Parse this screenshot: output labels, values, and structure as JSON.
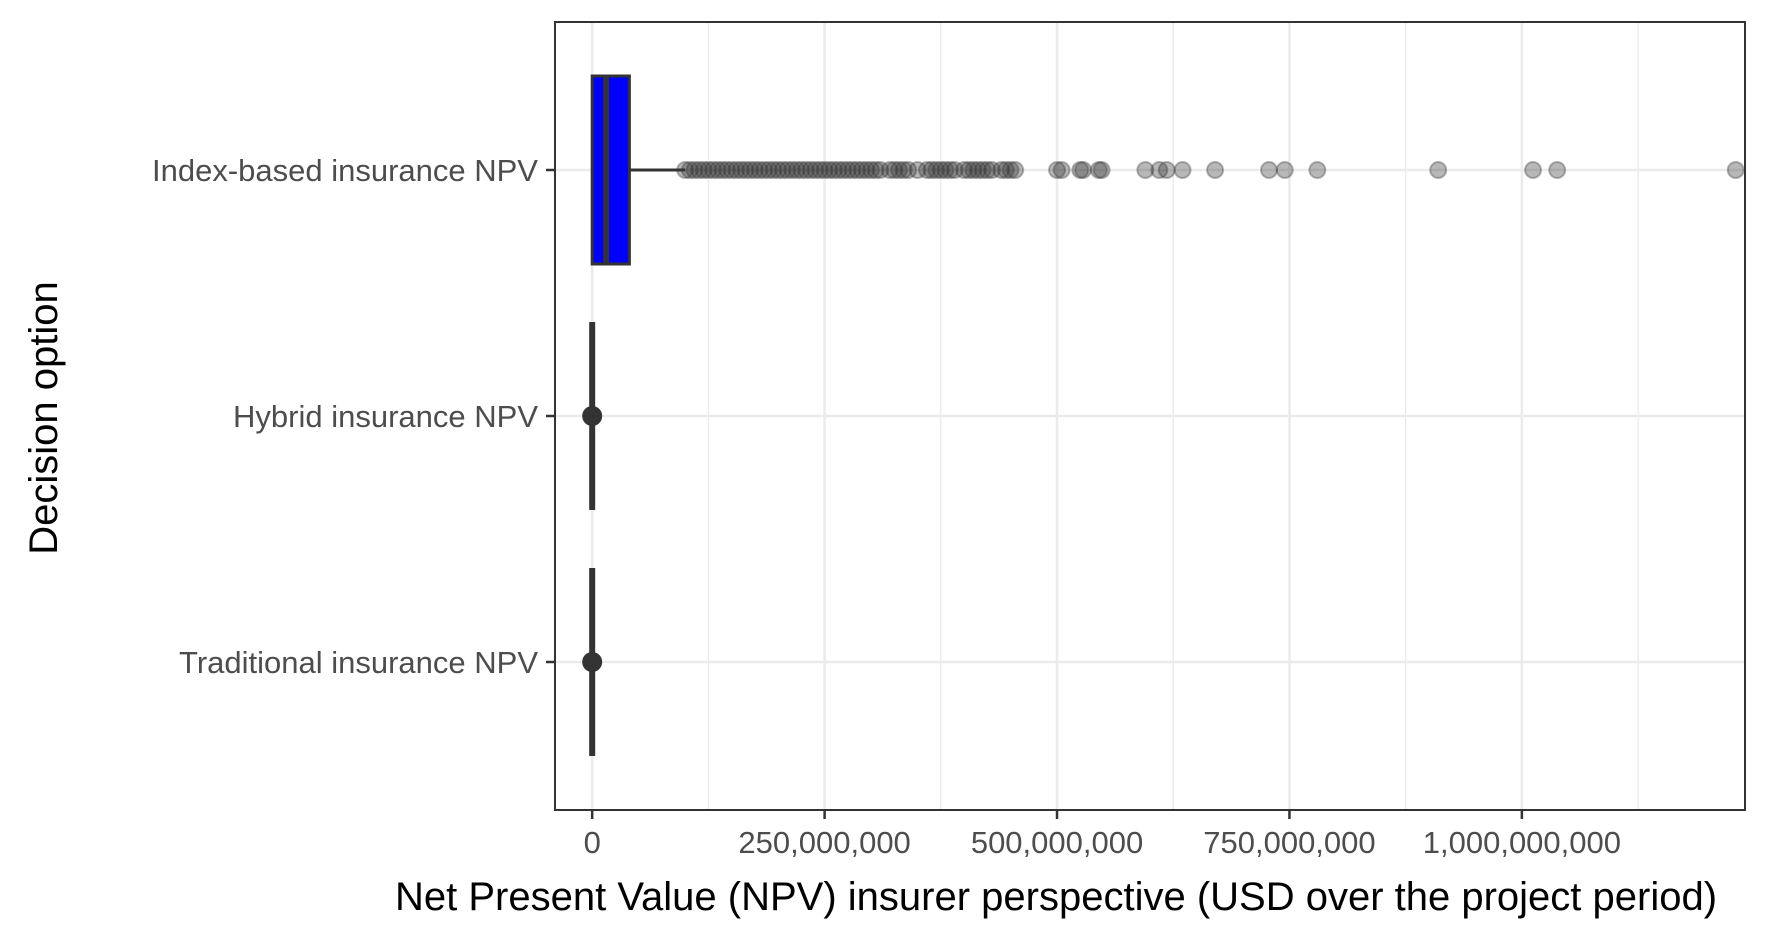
{
  "chart_data": {
    "type": "boxplot",
    "orientation": "horizontal",
    "title": "",
    "xlabel": "Net Present Value (NPV) insurer perspective (USD over the project period)",
    "ylabel": "Decision option",
    "xlim": [
      -40000000,
      1240000000
    ],
    "x_ticks": [
      0,
      250000000,
      500000000,
      750000000,
      1000000000
    ],
    "x_tick_labels": [
      "0",
      "250,000,000",
      "500,000,000",
      "750,000,000",
      "1,000,000,000"
    ],
    "grid": true,
    "categories": [
      "Index-based insurance NPV",
      "Hybrid insurance NPV",
      "Traditional insurance NPV"
    ],
    "series": [
      {
        "category": "Index-based insurance NPV",
        "whisker_low": 0,
        "q1": 0,
        "median": 15000000,
        "q3": 40000000,
        "whisker_high": 100000000,
        "fill": "#0000ff",
        "outliers": [
          100000000,
          105000000,
          110000000,
          115000000,
          120000000,
          125000000,
          130000000,
          135000000,
          140000000,
          145000000,
          150000000,
          155000000,
          160000000,
          165000000,
          170000000,
          175000000,
          180000000,
          185000000,
          190000000,
          195000000,
          200000000,
          205000000,
          210000000,
          215000000,
          220000000,
          225000000,
          230000000,
          235000000,
          240000000,
          245000000,
          250000000,
          255000000,
          260000000,
          265000000,
          270000000,
          275000000,
          280000000,
          285000000,
          290000000,
          295000000,
          300000000,
          305000000,
          310000000,
          320000000,
          325000000,
          330000000,
          335000000,
          340000000,
          350000000,
          360000000,
          365000000,
          370000000,
          375000000,
          380000000,
          385000000,
          390000000,
          400000000,
          405000000,
          410000000,
          415000000,
          420000000,
          425000000,
          430000000,
          440000000,
          445000000,
          450000000,
          455000000,
          500000000,
          505000000,
          525000000,
          528000000,
          545000000,
          548000000,
          595000000,
          610000000,
          618000000,
          635000000,
          670000000,
          728000000,
          745000000,
          780000000,
          910000000,
          1012000000,
          1038000000,
          1230000000
        ]
      },
      {
        "category": "Hybrid insurance NPV",
        "whisker_low": 0,
        "q1": 0,
        "median": 0,
        "q3": 0,
        "whisker_high": 0,
        "fill": "#333333",
        "outliers": [
          0
        ]
      },
      {
        "category": "Traditional insurance NPV",
        "whisker_low": 0,
        "q1": 0,
        "median": 0,
        "q3": 0,
        "whisker_high": 0,
        "fill": "#333333",
        "outliers": [
          0
        ]
      }
    ],
    "colors": {
      "grid": "#ebebeb",
      "axis_line": "#333333",
      "box_stroke": "#333333",
      "outlier": "#333333"
    }
  }
}
